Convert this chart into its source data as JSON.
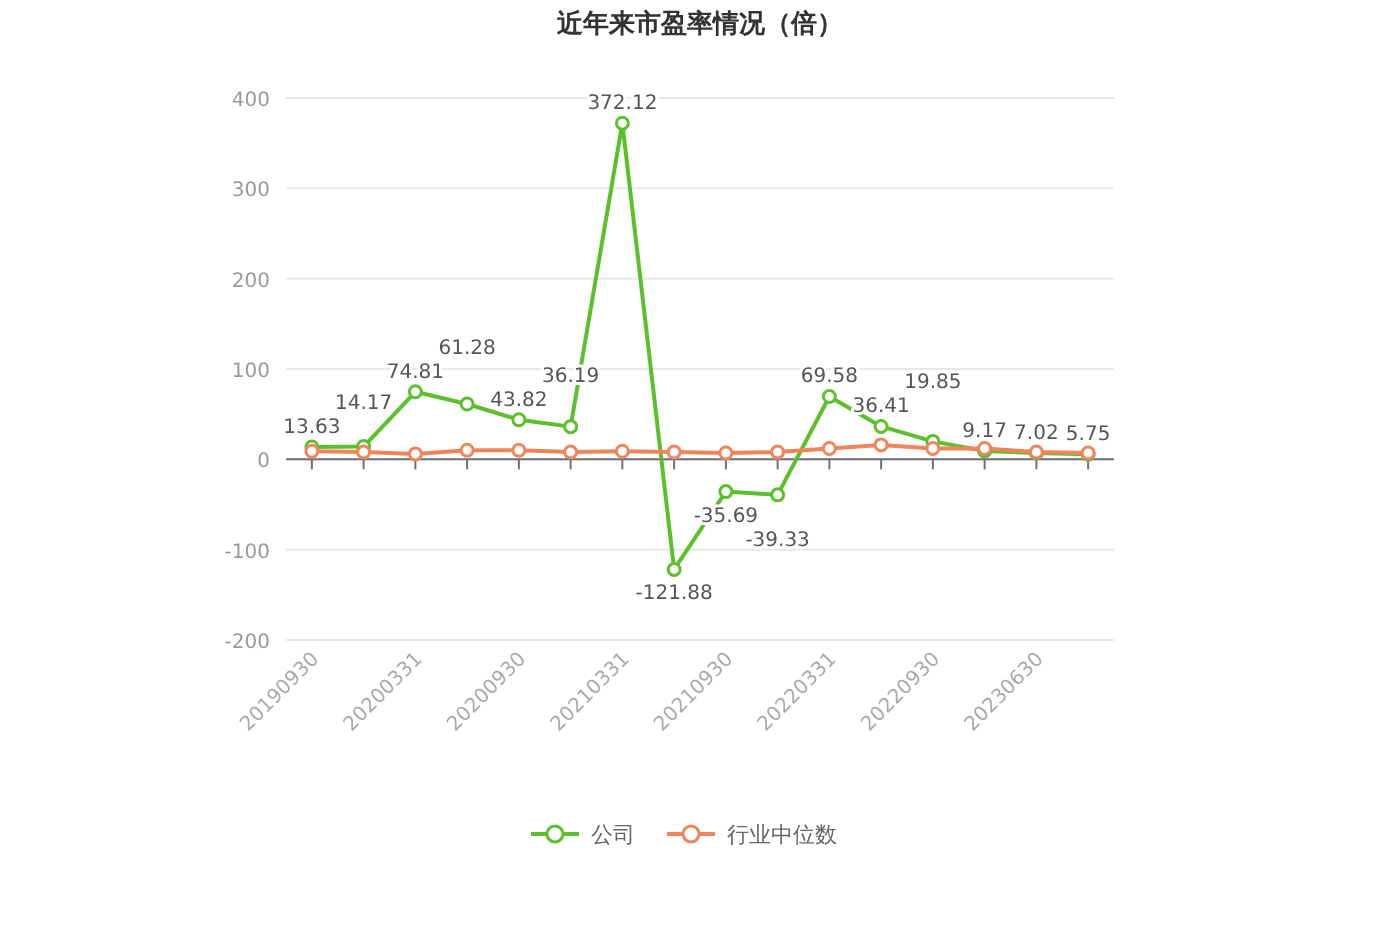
{
  "chart_data": {
    "type": "line",
    "title": "近年来市盈率情况（倍）",
    "categories": [
      "20190930",
      null,
      "20200331",
      null,
      "20200930",
      null,
      "20210331",
      null,
      "20210930",
      null,
      "20220331",
      null,
      "20220930",
      null,
      "20230630",
      null
    ],
    "series": [
      {
        "name": "公司",
        "color": "#5cc02c",
        "values": [
          13.63,
          14.17,
          74.81,
          61.28,
          43.82,
          36.19,
          372.12,
          -121.88,
          -35.69,
          -39.33,
          69.58,
          36.41,
          19.85,
          9.17,
          7.02,
          5.75
        ],
        "value_labels": [
          "13.63",
          "14.17",
          "74.81",
          "61.28",
          "43.82",
          "36.19",
          "372.12",
          "-121.88",
          "-35.69",
          "-39.33",
          "69.58",
          "36.41",
          "19.85",
          "9.17",
          "7.02",
          "5.75"
        ]
      },
      {
        "name": "行业中位数",
        "color": "#f0845a",
        "values": [
          9,
          8,
          6,
          10,
          10,
          8,
          9,
          8,
          7,
          8,
          12,
          16,
          12,
          12,
          8,
          7
        ]
      }
    ],
    "ylim": [
      -200,
      400
    ],
    "yticks": [
      -200,
      -100,
      0,
      100,
      200,
      300,
      400
    ],
    "grid": "y",
    "legend": "bottom",
    "marker": "circle",
    "line_style": "solid"
  }
}
